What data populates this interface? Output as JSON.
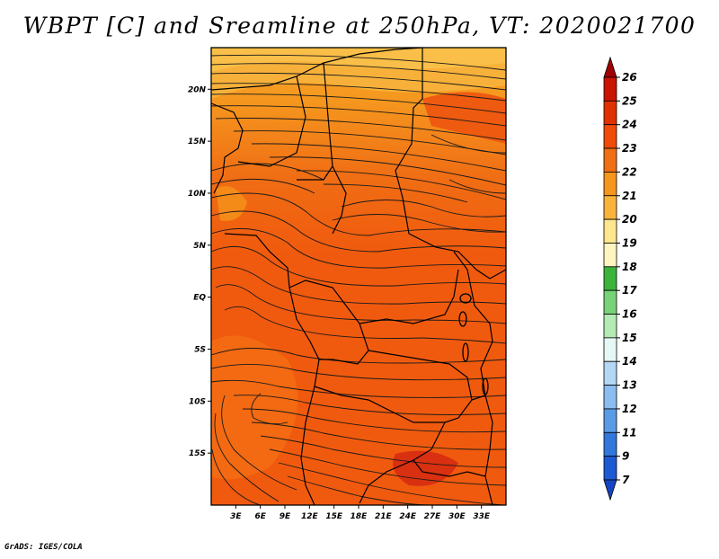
{
  "title": "WBPT [C] and Sreamline at 250hPa, VT: 2020021700",
  "credit": "GrADS: IGES/COLA",
  "map": {
    "lat_range": [
      -20,
      24
    ],
    "lon_range": [
      0,
      36
    ],
    "lat_ticks": [
      "20N",
      "15N",
      "10N",
      "5N",
      "EQ",
      "5S",
      "10S",
      "15S"
    ],
    "lat_tick_values": [
      20,
      15,
      10,
      5,
      0,
      -5,
      -10,
      -15
    ],
    "lon_ticks": [
      "3E",
      "6E",
      "9E",
      "12E",
      "15E",
      "18E",
      "21E",
      "24E",
      "27E",
      "30E",
      "33E"
    ],
    "lon_tick_values": [
      3,
      6,
      9,
      12,
      15,
      18,
      21,
      24,
      27,
      30,
      33
    ],
    "field": "WBPT",
    "field_unit": "C",
    "level": "250hPa",
    "valid_time": "2020021700",
    "overlay": "streamlines"
  },
  "colorbar": {
    "labels": [
      "26",
      "25",
      "24",
      "23",
      "22",
      "21",
      "20",
      "19",
      "18",
      "17",
      "16",
      "15",
      "14",
      "13",
      "12",
      "11",
      "9",
      "7"
    ],
    "colors": [
      "#a00000",
      "#c81400",
      "#e03200",
      "#f04b0a",
      "#f06e14",
      "#f5961e",
      "#fab43c",
      "#fde68c",
      "#fff5c0",
      "#3cb43c",
      "#78d278",
      "#b4eab4",
      "#e6f8f5",
      "#b4d7f5",
      "#8cbdf0",
      "#5a9be6",
      "#3278dc",
      "#1e5ad2",
      "#1446c3"
    ]
  }
}
